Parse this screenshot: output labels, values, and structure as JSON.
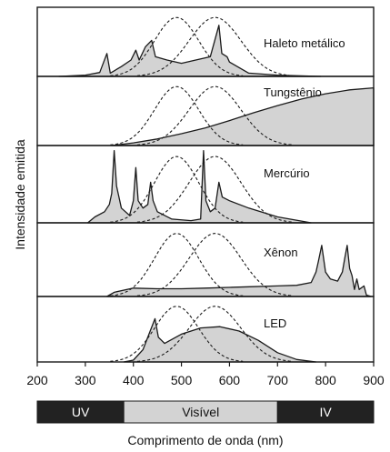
{
  "chart_data": {
    "type": "area",
    "ylabel": "Intensidade emitida",
    "xlabel": "Comprimento de onda (nm)",
    "xlim": [
      200,
      900
    ],
    "x_ticks": [
      "200",
      "300",
      "400",
      "500",
      "600",
      "700",
      "800",
      "900"
    ],
    "bands": [
      {
        "label": "UV",
        "from": 200,
        "to": 380,
        "color": "#222222"
      },
      {
        "label": "Visível",
        "from": 380,
        "to": 700,
        "color": "#d3d3d3"
      },
      {
        "label": "IV",
        "from": 700,
        "to": 900,
        "color": "#222222"
      }
    ],
    "cone_curves": [
      {
        "peak_nm": 490,
        "width_nm": 46
      },
      {
        "peak_nm": 570,
        "width_nm": 54
      }
    ],
    "panels": [
      {
        "label": "Haleto metálico",
        "spectrum": [
          [
            245,
            0.0
          ],
          [
            300,
            0.02
          ],
          [
            330,
            0.06
          ],
          [
            345,
            0.35
          ],
          [
            352,
            0.05
          ],
          [
            375,
            0.15
          ],
          [
            395,
            0.25
          ],
          [
            405,
            0.4
          ],
          [
            412,
            0.25
          ],
          [
            425,
            0.45
          ],
          [
            438,
            0.55
          ],
          [
            446,
            0.3
          ],
          [
            470,
            0.25
          ],
          [
            500,
            0.2
          ],
          [
            530,
            0.25
          ],
          [
            560,
            0.3
          ],
          [
            578,
            0.78
          ],
          [
            584,
            0.35
          ],
          [
            595,
            0.3
          ],
          [
            600,
            0.22
          ],
          [
            640,
            0.05
          ],
          [
            700,
            0.02
          ],
          [
            790,
            0.0
          ]
        ]
      },
      {
        "label": "Tungstênio",
        "spectrum": [
          [
            355,
            0.0
          ],
          [
            400,
            0.04
          ],
          [
            450,
            0.1
          ],
          [
            500,
            0.18
          ],
          [
            550,
            0.27
          ],
          [
            600,
            0.38
          ],
          [
            650,
            0.5
          ],
          [
            700,
            0.61
          ],
          [
            750,
            0.71
          ],
          [
            800,
            0.79
          ],
          [
            850,
            0.85
          ],
          [
            900,
            0.88
          ]
        ]
      },
      {
        "label": "Mercúrio",
        "spectrum": [
          [
            305,
            0.0
          ],
          [
            320,
            0.08
          ],
          [
            340,
            0.15
          ],
          [
            350,
            0.25
          ],
          [
            355,
            0.4
          ],
          [
            360,
            0.98
          ],
          [
            365,
            0.5
          ],
          [
            375,
            0.2
          ],
          [
            392,
            0.1
          ],
          [
            400,
            0.3
          ],
          [
            405,
            0.75
          ],
          [
            410,
            0.3
          ],
          [
            420,
            0.2
          ],
          [
            430,
            0.25
          ],
          [
            436,
            0.55
          ],
          [
            441,
            0.3
          ],
          [
            450,
            0.15
          ],
          [
            480,
            0.05
          ],
          [
            520,
            0.03
          ],
          [
            540,
            0.05
          ],
          [
            546,
            0.98
          ],
          [
            551,
            0.3
          ],
          [
            560,
            0.15
          ],
          [
            570,
            0.2
          ],
          [
            578,
            0.55
          ],
          [
            585,
            0.35
          ],
          [
            600,
            0.3
          ],
          [
            640,
            0.2
          ],
          [
            700,
            0.08
          ],
          [
            770,
            0.0
          ]
        ]
      },
      {
        "label": "Xênon",
        "spectrum": [
          [
            345,
            0.0
          ],
          [
            360,
            0.06
          ],
          [
            400,
            0.12
          ],
          [
            450,
            0.11
          ],
          [
            500,
            0.11
          ],
          [
            550,
            0.12
          ],
          [
            600,
            0.13
          ],
          [
            650,
            0.14
          ],
          [
            700,
            0.15
          ],
          [
            740,
            0.16
          ],
          [
            770,
            0.2
          ],
          [
            780,
            0.35
          ],
          [
            785,
            0.5
          ],
          [
            792,
            0.73
          ],
          [
            800,
            0.35
          ],
          [
            810,
            0.25
          ],
          [
            825,
            0.22
          ],
          [
            835,
            0.35
          ],
          [
            840,
            0.55
          ],
          [
            845,
            0.73
          ],
          [
            850,
            0.4
          ],
          [
            855,
            0.3
          ],
          [
            860,
            0.1
          ],
          [
            865,
            0.25
          ],
          [
            870,
            0.1
          ],
          [
            880,
            0.15
          ],
          [
            885,
            0.02
          ],
          [
            895,
            0.0
          ]
        ]
      },
      {
        "label": "LED",
        "spectrum": [
          [
            380,
            0.0
          ],
          [
            400,
            0.03
          ],
          [
            420,
            0.2
          ],
          [
            435,
            0.5
          ],
          [
            445,
            0.7
          ],
          [
            452,
            0.4
          ],
          [
            465,
            0.3
          ],
          [
            500,
            0.45
          ],
          [
            540,
            0.55
          ],
          [
            580,
            0.57
          ],
          [
            620,
            0.5
          ],
          [
            660,
            0.35
          ],
          [
            700,
            0.15
          ],
          [
            740,
            0.04
          ],
          [
            780,
            0.0
          ]
        ]
      }
    ]
  }
}
